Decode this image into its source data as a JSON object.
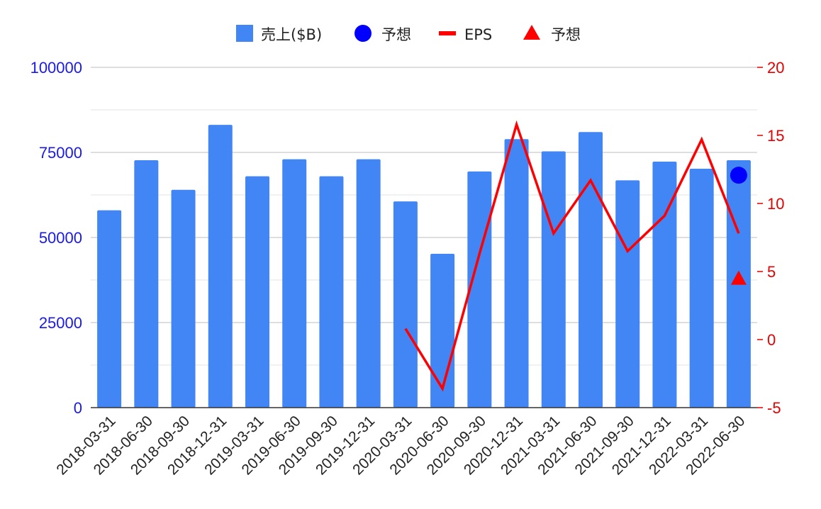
{
  "colors": {
    "bar": "#4285F4",
    "forecast_sales": "#0000FF",
    "eps": "#FF0000",
    "forecast_eps": "#FF0000",
    "left_axis": "#1A1AE6",
    "right_axis": "#E60000",
    "grid_major": "#BDBDBD",
    "grid_minor": "#E3E3E3",
    "baseline": "#333333"
  },
  "chart_data": {
    "type": "bar",
    "categories": [
      "2018-03-31",
      "2018-06-30",
      "2018-09-30",
      "2018-12-31",
      "2019-03-31",
      "2019-06-30",
      "2019-09-30",
      "2019-12-31",
      "2020-03-31",
      "2020-06-30",
      "2020-09-30",
      "2020-12-31",
      "2021-03-31",
      "2021-06-30",
      "2021-09-30",
      "2021-12-31",
      "2022-03-31",
      "2022-06-30"
    ],
    "series": [
      {
        "name": "売上($B)",
        "type": "bar",
        "axis": "left",
        "values": [
          58000,
          72700,
          64000,
          83100,
          68000,
          73000,
          68000,
          73000,
          60600,
          45200,
          69400,
          78900,
          75300,
          81000,
          66800,
          72300,
          70200,
          72700
        ]
      },
      {
        "name": "予想",
        "type": "scatter",
        "marker": "circle",
        "axis": "left",
        "values": [
          null,
          null,
          null,
          null,
          null,
          null,
          null,
          null,
          null,
          null,
          null,
          null,
          null,
          null,
          null,
          null,
          null,
          68300
        ]
      },
      {
        "name": "EPS",
        "type": "line",
        "axis": "right",
        "values": [
          null,
          null,
          null,
          null,
          null,
          null,
          null,
          null,
          0.8,
          -3.6,
          6.3,
          15.8,
          7.8,
          11.7,
          6.5,
          9.1,
          14.7,
          7.8
        ]
      },
      {
        "name": "予想",
        "type": "scatter",
        "marker": "triangle",
        "axis": "right",
        "values": [
          null,
          null,
          null,
          null,
          null,
          null,
          null,
          null,
          null,
          null,
          null,
          null,
          null,
          null,
          null,
          null,
          null,
          4.5
        ]
      }
    ],
    "y_left": {
      "min": 0,
      "max": 100000,
      "ticks": [
        "0",
        "25000",
        "50000",
        "75000",
        "100000"
      ],
      "tick_values": [
        0,
        25000,
        50000,
        75000,
        100000
      ]
    },
    "y_right": {
      "min": -5,
      "max": 20,
      "ticks": [
        "-5",
        "0",
        "5",
        "10",
        "15",
        "20"
      ],
      "tick_values": [
        -5,
        0,
        5,
        10,
        15,
        20
      ]
    },
    "legend_position": "top-center",
    "grid": true
  }
}
